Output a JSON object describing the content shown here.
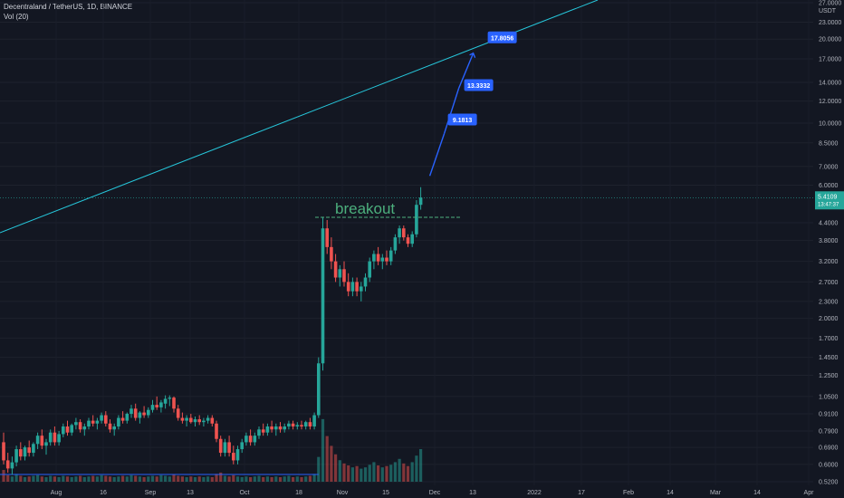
{
  "header": {
    "symbol_line": "Decentraland / TetherUS, 1D, BINANCE",
    "vol_label": "Vol (20)"
  },
  "price_axis": {
    "currency_top": "USDT",
    "ticks": [
      "27.0000",
      "23.0000",
      "20.0000",
      "17.0000",
      "14.0000",
      "12.0000",
      "10.0000",
      "8.5000",
      "7.0000",
      "6.0000",
      "4.4000",
      "3.8000",
      "3.2000",
      "2.7000",
      "2.3000",
      "2.0000",
      "1.7000",
      "1.4500",
      "1.2500",
      "1.0500",
      "0.9100",
      "0.7900",
      "0.6900",
      "0.6000",
      "0.5200"
    ],
    "last_price": "5.4109",
    "countdown": "13:47:37"
  },
  "time_axis": {
    "labels": [
      "Aug",
      "16",
      "Sep",
      "13",
      "Oct",
      "18",
      "Nov",
      "15",
      "Dec",
      "13",
      "2022",
      "17",
      "Feb",
      "14",
      "Mar",
      "14",
      "Apr"
    ]
  },
  "annotations": {
    "breakout_text": "breakout",
    "targets": [
      "9.1813",
      "13.3332",
      "17.8056"
    ]
  },
  "colors": {
    "background": "#131722",
    "up": "#26a69a",
    "down": "#ef5350",
    "trendline": "#26c6da",
    "projection": "#2962ff",
    "breakout_text": "#4caf7d",
    "label_bg": "#2962ff",
    "last_price_bg": "#26a69a"
  },
  "chart_data": {
    "type": "candlestick",
    "symbol": "Decentraland / TetherUS",
    "interval": "1D",
    "exchange": "BINANCE",
    "y_scale": "log",
    "ylim": [
      0.52,
      27
    ],
    "last_price": 5.4109,
    "breakout_level": 4.6,
    "projection_targets": [
      9.1813,
      13.3332,
      17.8056
    ],
    "ohlc": [
      [
        0.72,
        0.78,
        0.6,
        0.62
      ],
      [
        0.62,
        0.66,
        0.56,
        0.58
      ],
      [
        0.58,
        0.64,
        0.55,
        0.61
      ],
      [
        0.61,
        0.7,
        0.59,
        0.68
      ],
      [
        0.68,
        0.72,
        0.62,
        0.64
      ],
      [
        0.64,
        0.7,
        0.62,
        0.69
      ],
      [
        0.69,
        0.73,
        0.64,
        0.66
      ],
      [
        0.66,
        0.72,
        0.64,
        0.71
      ],
      [
        0.71,
        0.78,
        0.68,
        0.76
      ],
      [
        0.76,
        0.8,
        0.68,
        0.7
      ],
      [
        0.7,
        0.74,
        0.65,
        0.72
      ],
      [
        0.72,
        0.8,
        0.7,
        0.78
      ],
      [
        0.78,
        0.82,
        0.7,
        0.72
      ],
      [
        0.72,
        0.79,
        0.7,
        0.77
      ],
      [
        0.77,
        0.84,
        0.75,
        0.82
      ],
      [
        0.82,
        0.86,
        0.76,
        0.78
      ],
      [
        0.78,
        0.84,
        0.76,
        0.83
      ],
      [
        0.83,
        0.88,
        0.8,
        0.85
      ],
      [
        0.85,
        0.87,
        0.78,
        0.8
      ],
      [
        0.8,
        0.84,
        0.76,
        0.82
      ],
      [
        0.82,
        0.88,
        0.8,
        0.86
      ],
      [
        0.86,
        0.9,
        0.82,
        0.84
      ],
      [
        0.84,
        0.88,
        0.8,
        0.86
      ],
      [
        0.86,
        0.92,
        0.84,
        0.9
      ],
      [
        0.9,
        0.93,
        0.82,
        0.84
      ],
      [
        0.84,
        0.87,
        0.78,
        0.8
      ],
      [
        0.8,
        0.84,
        0.76,
        0.82
      ],
      [
        0.82,
        0.9,
        0.8,
        0.88
      ],
      [
        0.88,
        0.93,
        0.84,
        0.86
      ],
      [
        0.86,
        0.92,
        0.84,
        0.91
      ],
      [
        0.91,
        0.98,
        0.88,
        0.95
      ],
      [
        0.95,
        0.99,
        0.86,
        0.88
      ],
      [
        0.88,
        0.93,
        0.84,
        0.92
      ],
      [
        0.92,
        0.97,
        0.88,
        0.9
      ],
      [
        0.9,
        0.96,
        0.88,
        0.94
      ],
      [
        0.94,
        1.02,
        0.92,
        0.98
      ],
      [
        0.98,
        1.05,
        0.94,
        0.96
      ],
      [
        0.96,
        1.02,
        0.92,
        1.0
      ],
      [
        0.99,
        1.06,
        0.95,
        1.03
      ],
      [
        1.03,
        1.06,
        0.97,
        1.04
      ],
      [
        1.04,
        1.05,
        0.92,
        0.95
      ],
      [
        0.95,
        0.98,
        0.86,
        0.88
      ],
      [
        0.88,
        0.92,
        0.84,
        0.86
      ],
      [
        0.86,
        0.9,
        0.82,
        0.88
      ],
      [
        0.88,
        0.91,
        0.84,
        0.85
      ],
      [
        0.85,
        0.89,
        0.82,
        0.87
      ],
      [
        0.87,
        0.9,
        0.83,
        0.85
      ],
      [
        0.85,
        0.88,
        0.82,
        0.86
      ],
      [
        0.86,
        0.9,
        0.84,
        0.88
      ],
      [
        0.88,
        0.9,
        0.82,
        0.84
      ],
      [
        0.84,
        0.86,
        0.72,
        0.74
      ],
      [
        0.74,
        0.76,
        0.64,
        0.66
      ],
      [
        0.66,
        0.74,
        0.64,
        0.72
      ],
      [
        0.72,
        0.76,
        0.64,
        0.66
      ],
      [
        0.66,
        0.7,
        0.6,
        0.62
      ],
      [
        0.62,
        0.7,
        0.6,
        0.68
      ],
      [
        0.68,
        0.74,
        0.66,
        0.72
      ],
      [
        0.72,
        0.78,
        0.7,
        0.76
      ],
      [
        0.76,
        0.8,
        0.7,
        0.72
      ],
      [
        0.72,
        0.78,
        0.7,
        0.76
      ],
      [
        0.76,
        0.82,
        0.74,
        0.8
      ],
      [
        0.8,
        0.84,
        0.76,
        0.78
      ],
      [
        0.78,
        0.84,
        0.76,
        0.82
      ],
      [
        0.82,
        0.86,
        0.78,
        0.8
      ],
      [
        0.8,
        0.84,
        0.76,
        0.82
      ],
      [
        0.82,
        0.85,
        0.78,
        0.8
      ],
      [
        0.8,
        0.84,
        0.78,
        0.82
      ],
      [
        0.82,
        0.86,
        0.8,
        0.84
      ],
      [
        0.84,
        0.86,
        0.8,
        0.82
      ],
      [
        0.82,
        0.85,
        0.8,
        0.83
      ],
      [
        0.83,
        0.86,
        0.8,
        0.82
      ],
      [
        0.82,
        0.86,
        0.8,
        0.85
      ],
      [
        0.85,
        0.88,
        0.8,
        0.82
      ],
      [
        0.82,
        0.92,
        0.8,
        0.9
      ],
      [
        0.9,
        1.45,
        0.88,
        1.38
      ],
      [
        1.38,
        4.6,
        1.3,
        4.2
      ],
      [
        4.2,
        4.5,
        3.4,
        3.6
      ],
      [
        3.6,
        3.9,
        3.0,
        3.2
      ],
      [
        3.2,
        3.4,
        2.7,
        2.8
      ],
      [
        2.8,
        3.1,
        2.6,
        3.0
      ],
      [
        3.0,
        3.2,
        2.6,
        2.7
      ],
      [
        2.7,
        2.9,
        2.4,
        2.5
      ],
      [
        2.5,
        2.8,
        2.4,
        2.7
      ],
      [
        2.7,
        2.8,
        2.4,
        2.5
      ],
      [
        2.5,
        2.7,
        2.3,
        2.6
      ],
      [
        2.6,
        2.9,
        2.5,
        2.8
      ],
      [
        2.8,
        3.3,
        2.7,
        3.2
      ],
      [
        3.2,
        3.5,
        3.0,
        3.4
      ],
      [
        3.4,
        3.6,
        3.1,
        3.2
      ],
      [
        3.2,
        3.4,
        3.0,
        3.3
      ],
      [
        3.3,
        3.5,
        3.1,
        3.2
      ],
      [
        3.2,
        3.6,
        3.1,
        3.5
      ],
      [
        3.5,
        4.0,
        3.4,
        3.9
      ],
      [
        3.9,
        4.3,
        3.7,
        4.2
      ],
      [
        4.2,
        4.3,
        3.8,
        3.9
      ],
      [
        3.9,
        4.0,
        3.6,
        3.7
      ],
      [
        3.7,
        4.1,
        3.6,
        4.0
      ],
      [
        4.0,
        5.3,
        3.9,
        5.1
      ],
      [
        5.1,
        5.9,
        4.9,
        5.41
      ]
    ],
    "volume": [
      18,
      10,
      8,
      12,
      9,
      7,
      8,
      9,
      10,
      8,
      7,
      9,
      8,
      7,
      9,
      8,
      7,
      8,
      9,
      7,
      8,
      9,
      8,
      10,
      9,
      8,
      7,
      8,
      9,
      8,
      10,
      9,
      8,
      7,
      8,
      9,
      8,
      10,
      9,
      8,
      11,
      9,
      8,
      7,
      8,
      7,
      8,
      7,
      8,
      7,
      12,
      14,
      9,
      8,
      10,
      8,
      7,
      8,
      7,
      8,
      9,
      7,
      8,
      7,
      8,
      7,
      8,
      9,
      7,
      8,
      7,
      8,
      9,
      12,
      38,
      96,
      70,
      55,
      42,
      33,
      28,
      25,
      22,
      24,
      20,
      22,
      26,
      30,
      25,
      22,
      24,
      26,
      30,
      35,
      28,
      24,
      30,
      40,
      50
    ]
  }
}
